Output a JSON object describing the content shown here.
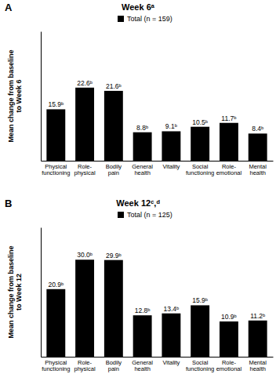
{
  "chart_data": [
    {
      "type": "bar",
      "title": "Week 6ᵃ",
      "annotations": [
        "A"
      ],
      "y_label": "Mean change from baseline to Week 6",
      "categories": [
        "Physical functioning",
        "Role-physical",
        "Bodily pain",
        "General health",
        "Vitality",
        "Social functioning",
        "Role-emotional",
        "Mental health"
      ],
      "series": [
        {
          "name": "Total (n = 159)",
          "color": "#000000",
          "values": [
            15.9,
            22.6,
            21.6,
            8.8,
            9.1,
            10.5,
            11.7,
            8.4
          ],
          "value_labels": [
            "15.9ᵇ",
            "22.6ᵇ",
            "21.6ᵇ",
            "8.8ᵇ",
            "9.1ᵇ",
            "10.5ᵇ",
            "11.7ᵇ",
            "8.4ᵇ"
          ]
        }
      ],
      "ylim": [
        0,
        40
      ],
      "tick_labels": "x",
      "data_labels": true,
      "legend": "top",
      "grid": false
    },
    {
      "type": "bar",
      "title": "Week 12ᶜ,ᵈ",
      "annotations": [
        "B"
      ],
      "y_label": "Mean change from baseline to Week 12",
      "categories": [
        "Physical functioning",
        "Role-physical",
        "Bodily pain",
        "General health",
        "Vitality",
        "Social functioning",
        "Role-emotional",
        "Mental health"
      ],
      "series": [
        {
          "name": "Total (n = 125)",
          "color": "#000000",
          "values": [
            20.9,
            30.0,
            29.9,
            12.8,
            13.4,
            15.9,
            10.9,
            11.2
          ],
          "value_labels": [
            "20.9ᵇ",
            "30.0ᵇ",
            "29.9ᵇ",
            "12.8ᵇ",
            "13.4ᵇ",
            "15.9ᵇ",
            "10.9ᵇ",
            "11.2ᵇ"
          ]
        }
      ],
      "ylim": [
        0,
        40
      ],
      "tick_labels": "x",
      "data_labels": true,
      "legend": "top",
      "grid": false
    }
  ]
}
